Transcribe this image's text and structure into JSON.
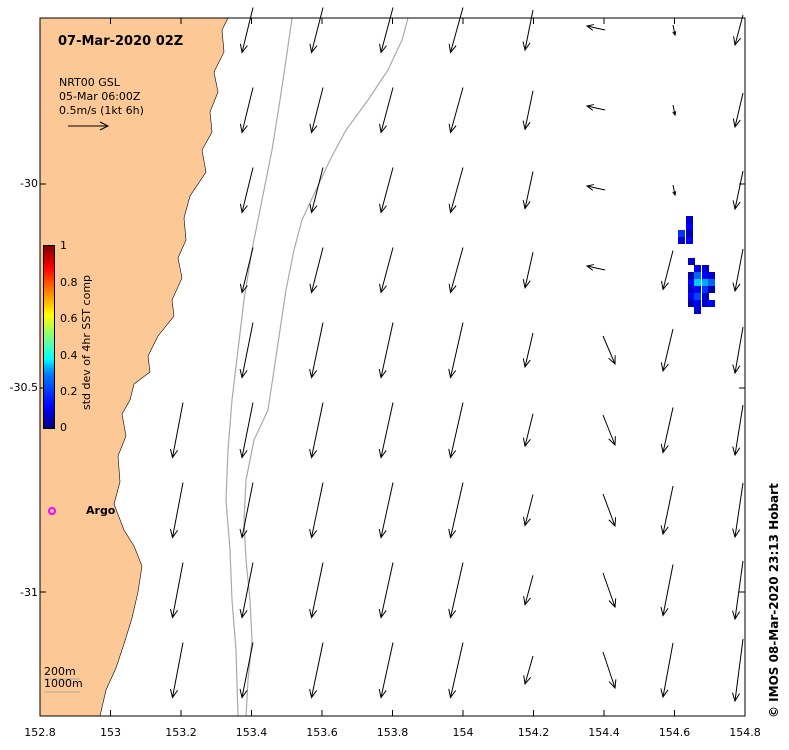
{
  "title": "07-Mar-2020 02Z",
  "legend": {
    "product": "NRT00 GSL",
    "date": "05-Mar 06:00Z",
    "scale": "0.5m/s (1kt 6h)"
  },
  "colorbar": {
    "label": "std dev of 4hr SST comp",
    "ticks": [
      "1",
      "0.8",
      "0.6",
      "0.4",
      "0.2",
      "0"
    ]
  },
  "axes": {
    "x_ticks": [
      "152.8",
      "153",
      "153.2",
      "153.4",
      "153.6",
      "153.8",
      "154",
      "154.2",
      "154.4",
      "154.6",
      "154.8"
    ],
    "y_ticks": [
      "-30",
      "-30.5",
      "-31"
    ],
    "xlim": [
      152.8,
      154.8
    ],
    "ylim": [
      -31.3,
      -29.58
    ]
  },
  "argo": {
    "label": "Argo",
    "lon": 152.83,
    "lat": -30.81,
    "color": "#ff00ff"
  },
  "depth_contours": [
    "200m",
    "1000m"
  ],
  "credit": "© IMOS 08-Mar-2020 23:13 Hobart",
  "colors": {
    "land": "#fcc896",
    "contour": "#a9a9a9",
    "vector": "#000000"
  }
}
